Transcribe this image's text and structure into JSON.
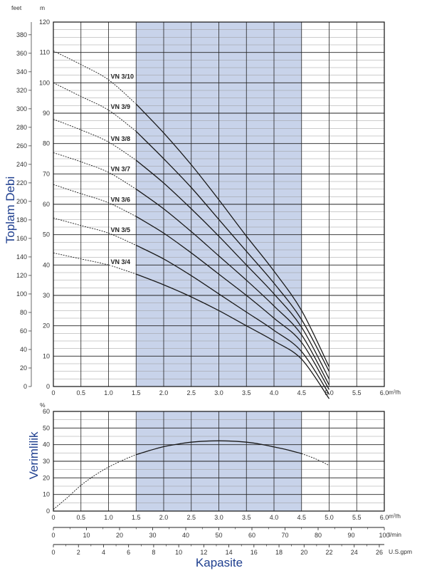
{
  "chart_data": [
    {
      "type": "line",
      "ylabel": "Toplam Debi",
      "units": {
        "left": "feet",
        "right": "m",
        "x": "m³/h"
      },
      "x_ticks": [
        "0",
        "0.5",
        "1.0",
        "1.5",
        "2.0",
        "2.5",
        "3.0",
        "3.5",
        "4.0",
        "4.5",
        "5.0",
        "5.5",
        "6.0"
      ],
      "xlim": [
        0,
        6
      ],
      "ylim_m": [
        0,
        120
      ],
      "m_ticks": [
        0,
        10,
        20,
        30,
        40,
        50,
        60,
        70,
        80,
        90,
        100,
        110,
        120
      ],
      "ft_ticks": [
        0,
        20,
        40,
        60,
        80,
        100,
        120,
        140,
        160,
        180,
        200,
        220,
        240,
        260,
        280,
        300,
        320,
        340,
        360,
        380
      ],
      "highlight_range": [
        1.5,
        4.5
      ],
      "grid": true,
      "series": [
        {
          "name": "VN 3/10",
          "label_x": 1.0,
          "x": [
            0,
            0.5,
            1.0,
            1.5,
            2.0,
            2.5,
            3.0,
            3.5,
            4.0,
            4.5,
            5.0
          ],
          "values": [
            110.5,
            106,
            101,
            93,
            83.5,
            73,
            61.5,
            49.5,
            38,
            25,
            6.5
          ]
        },
        {
          "name": "VN 3/9",
          "label_x": 1.0,
          "x": [
            0,
            0.5,
            1.0,
            1.5,
            2.0,
            2.5,
            3.0,
            3.5,
            4.0,
            4.5,
            5.0
          ],
          "values": [
            100,
            95.5,
            91,
            84,
            75,
            65.5,
            55,
            44.5,
            34,
            22,
            5
          ]
        },
        {
          "name": "VN 3/8",
          "label_x": 1.0,
          "x": [
            0,
            0.5,
            1.0,
            1.5,
            2.0,
            2.5,
            3.0,
            3.5,
            4.0,
            4.5,
            5.0
          ],
          "values": [
            88,
            84.5,
            80.5,
            74.5,
            67,
            58.5,
            49.5,
            40,
            30.5,
            19.5,
            2.5
          ]
        },
        {
          "name": "VN 3/7",
          "label_x": 1.0,
          "x": [
            0,
            0.5,
            1.0,
            1.5,
            2.0,
            2.5,
            3.0,
            3.5,
            4.0,
            4.5,
            5.0
          ],
          "values": [
            77,
            74,
            70.5,
            65,
            58.5,
            51,
            43,
            35,
            26.5,
            17,
            0.5
          ]
        },
        {
          "name": "VN 3/6",
          "label_x": 1.0,
          "x": [
            0,
            0.5,
            1.0,
            1.5,
            2.0,
            2.5,
            3.0,
            3.5,
            4.0,
            4.5,
            5.0
          ],
          "values": [
            66.5,
            63.5,
            60.5,
            56,
            50.5,
            44,
            37,
            30,
            22.5,
            14.5,
            -1
          ]
        },
        {
          "name": "VN 3/5",
          "label_x": 1.0,
          "x": [
            0,
            0.5,
            1.0,
            1.5,
            2.0,
            2.5,
            3.0,
            3.5,
            4.0,
            4.5,
            5.0
          ],
          "values": [
            55.5,
            53,
            50.5,
            46.5,
            42,
            36.5,
            30.5,
            24.5,
            18.5,
            11.5,
            -2.5
          ]
        },
        {
          "name": "VN 3/4",
          "label_x": 1.0,
          "x": [
            0,
            0.5,
            1.0,
            1.5,
            2.0,
            2.5,
            3.0,
            3.5,
            4.0,
            4.5,
            5.0
          ],
          "values": [
            44,
            42,
            40,
            37,
            33.5,
            29.5,
            25,
            20,
            15,
            9,
            -4
          ]
        }
      ]
    },
    {
      "type": "line",
      "ylabel": "Verimlilik",
      "units": {
        "y": "%",
        "x": "m³/h"
      },
      "x_ticks": [
        "0",
        "0.5",
        "1.0",
        "1.5",
        "2.0",
        "2.5",
        "3.0",
        "3.5",
        "4.0",
        "4.5",
        "5.0",
        "5.5",
        "6.0"
      ],
      "xlim": [
        0,
        6
      ],
      "ylim": [
        0,
        60
      ],
      "y_ticks": [
        0,
        10,
        20,
        30,
        40,
        50,
        60
      ],
      "highlight_range": [
        1.5,
        4.5
      ],
      "grid": true,
      "series": [
        {
          "x": [
            0,
            0.25,
            0.5,
            0.75,
            1.0,
            1.25,
            1.5,
            1.75,
            2.0,
            2.25,
            2.5,
            2.75,
            3.0,
            3.25,
            3.5,
            3.75,
            4.0,
            4.25,
            4.5,
            4.75,
            5.0
          ],
          "values": [
            1,
            8,
            15.5,
            21.5,
            26.5,
            30.5,
            34,
            36.5,
            38.8,
            40.3,
            41.5,
            42.1,
            42.3,
            42.1,
            41.5,
            40.3,
            38.6,
            36.8,
            34.6,
            31.5,
            27.5
          ]
        }
      ]
    }
  ],
  "capacity_axes": {
    "title": "Kapasite",
    "m3h": {
      "unit": "m³/h",
      "ticks": [
        "0",
        "0.5",
        "1.0",
        "1.5",
        "2.0",
        "2.5",
        "3.0",
        "3.5",
        "4.0",
        "4.5",
        "5.0",
        "5.5",
        "6.0"
      ]
    },
    "lmin": {
      "unit": "l/min",
      "max": 100,
      "ticks": [
        0,
        10,
        20,
        30,
        40,
        50,
        60,
        70,
        80,
        90,
        100
      ]
    },
    "usgpm": {
      "unit": "U.S.gpm",
      "max": 26.4,
      "ticks": [
        0,
        2,
        4,
        6,
        8,
        10,
        12,
        14,
        16,
        18,
        20,
        22,
        24,
        26
      ]
    }
  },
  "colors": {
    "highlight": "#c8d3ea",
    "label_blue": "#1f3f8f",
    "curve": "#1a1a1a"
  }
}
